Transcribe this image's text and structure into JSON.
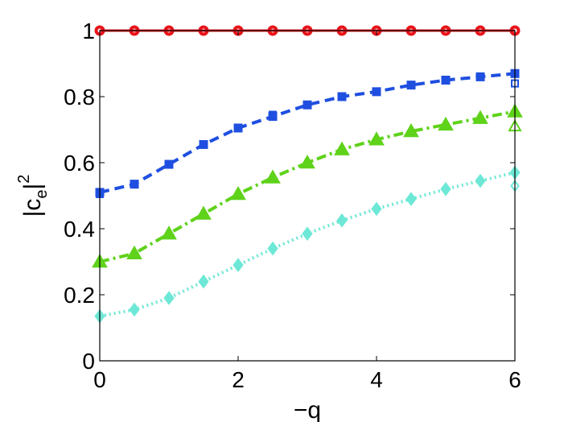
{
  "chart_data": {
    "type": "line",
    "xlabel": "−q",
    "ylabel": {
      "pre": "|c",
      "sub": "e",
      "mid": "|",
      "sup": "2"
    },
    "xlim": [
      0,
      6
    ],
    "ylim": [
      0,
      1
    ],
    "xticks": [
      0,
      2,
      4,
      6
    ],
    "yticks": [
      0,
      0.2,
      0.4,
      0.6,
      0.8,
      1
    ],
    "xtick_labels": [
      "0",
      "2",
      "4",
      "6"
    ],
    "ytick_labels": [
      "0",
      "0.2",
      "0.4",
      "0.6",
      "0.8",
      "1"
    ],
    "grid": false,
    "x": [
      0,
      0.5,
      1,
      1.5,
      2,
      2.5,
      3,
      3.5,
      4,
      4.5,
      5,
      5.5,
      6
    ],
    "series": [
      {
        "color": "#e8141a",
        "line_style": "solid",
        "marker": "circle",
        "filled_values": [
          1,
          1,
          1,
          1,
          1,
          1,
          1,
          1,
          1,
          1,
          1,
          1,
          1
        ],
        "open_values": [
          1,
          1,
          1,
          1,
          1,
          1,
          1,
          1,
          1,
          1,
          1,
          1,
          1
        ]
      },
      {
        "color": "#1f4fe0",
        "line_style": "dashed",
        "marker": "square",
        "filled_values": [
          0.51,
          0.535,
          0.595,
          0.655,
          0.705,
          0.74,
          0.775,
          0.8,
          0.815,
          0.835,
          0.85,
          0.86,
          0.87
        ],
        "open_values": [
          0.505,
          0.535,
          0.595,
          0.655,
          0.705,
          0.745,
          0.775,
          0.8,
          0.815,
          0.835,
          0.85,
          0.86,
          0.84
        ]
      },
      {
        "color": "#5fd21a",
        "line_style": "dashdot",
        "marker": "triangle",
        "filled_values": [
          0.3,
          0.325,
          0.385,
          0.445,
          0.505,
          0.555,
          0.6,
          0.64,
          0.67,
          0.695,
          0.715,
          0.735,
          0.755
        ],
        "open_values": [
          0.3,
          0.325,
          0.385,
          0.445,
          0.505,
          0.555,
          0.6,
          0.64,
          0.67,
          0.695,
          0.715,
          0.735,
          0.71
        ]
      },
      {
        "color": "#6ee8d6",
        "line_style": "dotted",
        "marker": "diamond",
        "filled_values": [
          0.135,
          0.155,
          0.19,
          0.24,
          0.29,
          0.34,
          0.385,
          0.425,
          0.46,
          0.49,
          0.52,
          0.545,
          0.57
        ],
        "open_values": [
          0.135,
          0.155,
          0.19,
          0.24,
          0.29,
          0.34,
          0.385,
          0.425,
          0.46,
          0.49,
          0.52,
          0.545,
          0.53
        ]
      }
    ]
  }
}
